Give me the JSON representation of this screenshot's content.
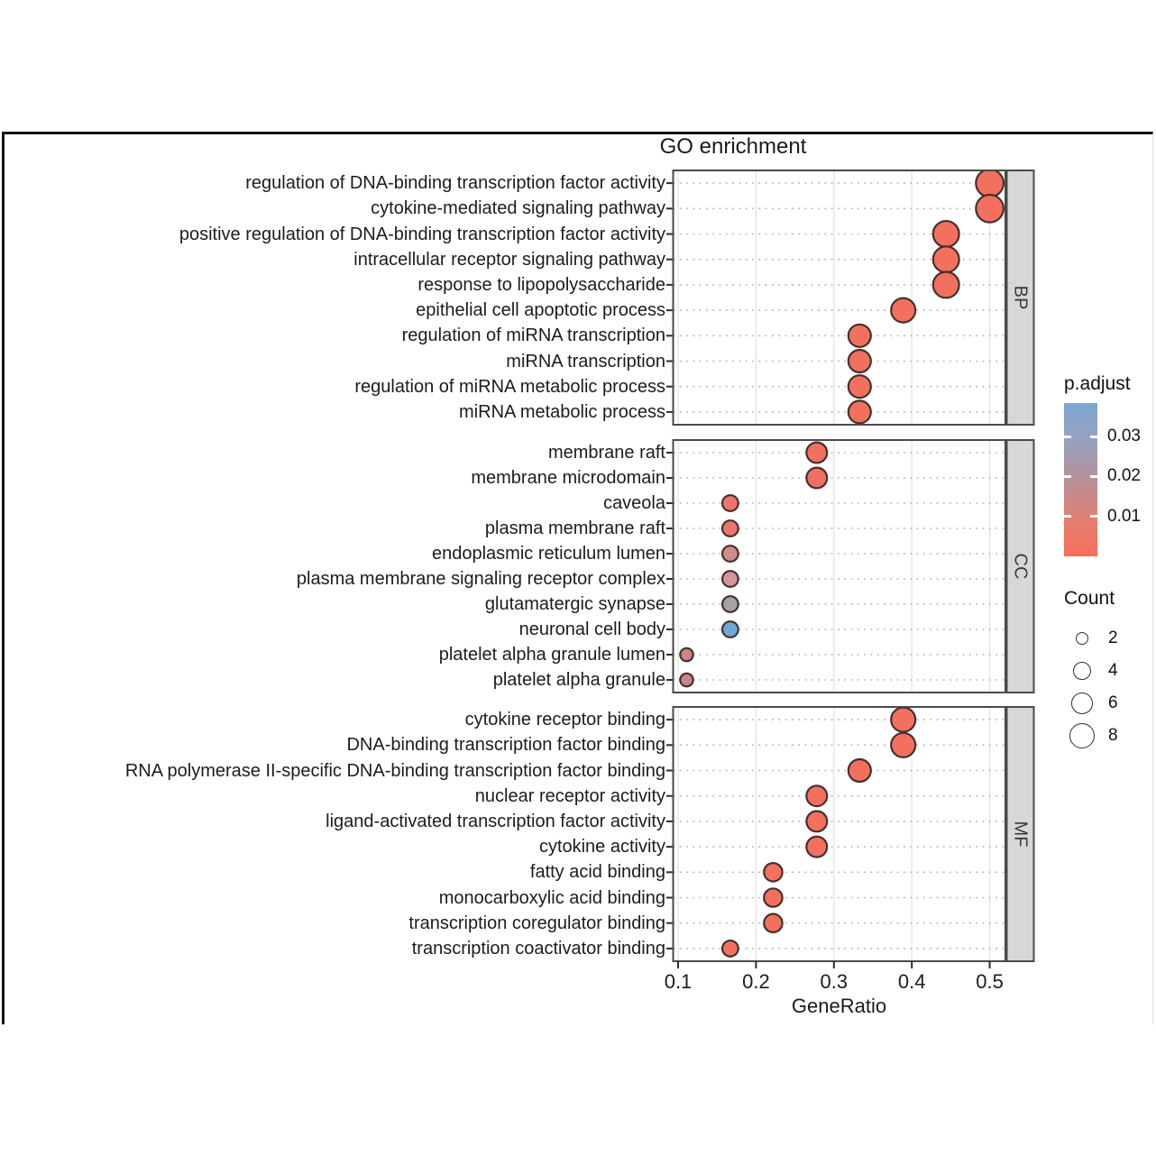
{
  "chart_data": {
    "type": "scatter",
    "title": "GO enrichment",
    "xlabel": "GeneRatio",
    "x_ticks": [
      "0.1",
      "0.2",
      "0.3",
      "0.4",
      "0.5"
    ],
    "x_tick_values": [
      0.1,
      0.2,
      0.3,
      0.4,
      0.5
    ],
    "x_range": [
      0.094,
      0.52
    ],
    "grid": "dotted-horizontal, light-vertical",
    "dot_stroke": "#44312c",
    "facets": [
      {
        "label": "BP",
        "rows": [
          {
            "term": "regulation of DNA-binding transcription factor activity",
            "gene_ratio": 0.5,
            "count": 9,
            "color": "#f3705f"
          },
          {
            "term": "cytokine-mediated signaling pathway",
            "gene_ratio": 0.5,
            "count": 9,
            "color": "#f3705f"
          },
          {
            "term": "positive regulation of DNA-binding transcription factor activity",
            "gene_ratio": 0.444,
            "count": 8,
            "color": "#f3705f"
          },
          {
            "term": "intracellular receptor signaling pathway",
            "gene_ratio": 0.444,
            "count": 8,
            "color": "#f3705f"
          },
          {
            "term": "response to lipopolysaccharide",
            "gene_ratio": 0.444,
            "count": 8,
            "color": "#f3705f"
          },
          {
            "term": "epithelial cell apoptotic process",
            "gene_ratio": 0.389,
            "count": 7,
            "color": "#f3705f"
          },
          {
            "term": "regulation of miRNA transcription",
            "gene_ratio": 0.333,
            "count": 6,
            "color": "#f3705f"
          },
          {
            "term": "miRNA transcription",
            "gene_ratio": 0.333,
            "count": 6,
            "color": "#f3705f"
          },
          {
            "term": "regulation of miRNA metabolic process",
            "gene_ratio": 0.333,
            "count": 6,
            "color": "#f3705f"
          },
          {
            "term": "miRNA metabolic process",
            "gene_ratio": 0.333,
            "count": 6,
            "color": "#f3705f"
          }
        ]
      },
      {
        "label": "CC",
        "rows": [
          {
            "term": "membrane raft",
            "gene_ratio": 0.278,
            "count": 5,
            "color": "#f1705f"
          },
          {
            "term": "membrane microdomain",
            "gene_ratio": 0.278,
            "count": 5,
            "color": "#f1705f"
          },
          {
            "term": "caveola",
            "gene_ratio": 0.167,
            "count": 3,
            "color": "#f0756a"
          },
          {
            "term": "plasma membrane raft",
            "gene_ratio": 0.167,
            "count": 3,
            "color": "#ee7569"
          },
          {
            "term": "endoplasmic reticulum lumen",
            "gene_ratio": 0.167,
            "count": 3,
            "color": "#d08c8a"
          },
          {
            "term": "plasma membrane signaling receptor complex",
            "gene_ratio": 0.167,
            "count": 3,
            "color": "#d6939c"
          },
          {
            "term": "glutamatergic synapse",
            "gene_ratio": 0.167,
            "count": 3,
            "color": "#a99fa6"
          },
          {
            "term": "neuronal cell body",
            "gene_ratio": 0.167,
            "count": 3,
            "color": "#72a8d8"
          },
          {
            "term": "platelet alpha granule lumen",
            "gene_ratio": 0.111,
            "count": 2,
            "color": "#c98589"
          },
          {
            "term": "platelet alpha granule",
            "gene_ratio": 0.111,
            "count": 2,
            "color": "#c98589"
          }
        ]
      },
      {
        "label": "MF",
        "rows": [
          {
            "term": "cytokine receptor binding",
            "gene_ratio": 0.389,
            "count": 7,
            "color": "#f3705f"
          },
          {
            "term": "DNA-binding transcription factor binding",
            "gene_ratio": 0.389,
            "count": 7,
            "color": "#f3705f"
          },
          {
            "term": "RNA polymerase II-specific DNA-binding transcription factor binding",
            "gene_ratio": 0.333,
            "count": 6,
            "color": "#f3705f"
          },
          {
            "term": "nuclear receptor activity",
            "gene_ratio": 0.278,
            "count": 5,
            "color": "#f3705f"
          },
          {
            "term": "ligand-activated transcription factor activity",
            "gene_ratio": 0.278,
            "count": 5,
            "color": "#f3705f"
          },
          {
            "term": "cytokine activity",
            "gene_ratio": 0.278,
            "count": 5,
            "color": "#f3705f"
          },
          {
            "term": "fatty acid binding",
            "gene_ratio": 0.222,
            "count": 4,
            "color": "#f3705f"
          },
          {
            "term": "monocarboxylic acid binding",
            "gene_ratio": 0.222,
            "count": 4,
            "color": "#f3705f"
          },
          {
            "term": "transcription coregulator binding",
            "gene_ratio": 0.222,
            "count": 4,
            "color": "#f3705f"
          },
          {
            "term": "transcription coactivator binding",
            "gene_ratio": 0.167,
            "count": 3,
            "color": "#f3705f"
          }
        ]
      }
    ],
    "legend_p_adjust": {
      "title": "p.adjust",
      "tick_labels": [
        "0.03",
        "0.02",
        "0.01"
      ],
      "tick_values": [
        0.03,
        0.02,
        0.01
      ],
      "bar_value_range": [
        0,
        0.0384
      ],
      "gradient_stops": [
        {
          "pos": 0,
          "color": "#7ca7d2"
        },
        {
          "pos": 22,
          "color": "#94a2c2"
        },
        {
          "pos": 48,
          "color": "#b4919c"
        },
        {
          "pos": 74,
          "color": "#de8174"
        },
        {
          "pos": 100,
          "color": "#f86e59"
        }
      ]
    },
    "legend_count": {
      "title": "Count",
      "sizes": [
        2,
        4,
        6,
        8
      ]
    }
  }
}
